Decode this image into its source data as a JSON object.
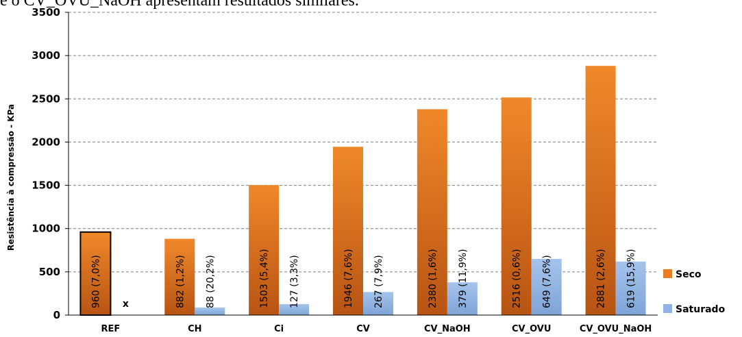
{
  "page": {
    "top_text": "e o CV_OVU_NaOH apresentam resultados similares."
  },
  "chart_data": {
    "type": "bar",
    "title": "",
    "xlabel": "",
    "ylabel": "Resistência à compressão - KPa",
    "ylim": [
      0,
      3500
    ],
    "yticks": [
      0,
      500,
      1000,
      1500,
      2000,
      2500,
      3000,
      3500
    ],
    "grid": "horizontal-dashed",
    "legend_position": "right",
    "categories": [
      "REF",
      "CH",
      "Ci",
      "CV",
      "CV_NaOH",
      "CV_OVU",
      "CV_OVU_NaOH"
    ],
    "series": [
      {
        "name": "Seco",
        "color": "#e87d24",
        "values": [
          960,
          882,
          1503,
          1946,
          2380,
          2516,
          2881
        ],
        "labels": [
          "960 (7,0%)",
          "882 (1,2%)",
          "1503 (5,4%)",
          "1946 (7,6%)",
          "2380 (1,6%)",
          "2516 (0,6%)",
          "2881 (2,6%)"
        ]
      },
      {
        "name": "Saturado",
        "color": "#8fb4e3",
        "values": [
          null,
          88,
          127,
          267,
          379,
          649,
          619
        ],
        "labels": [
          "x",
          "88 (20,2%)",
          "127 (3,3%)",
          "267 (7,9%)",
          "379 (11,9%)",
          "649 (7,6%)",
          "619 (15,9%)"
        ]
      }
    ]
  }
}
